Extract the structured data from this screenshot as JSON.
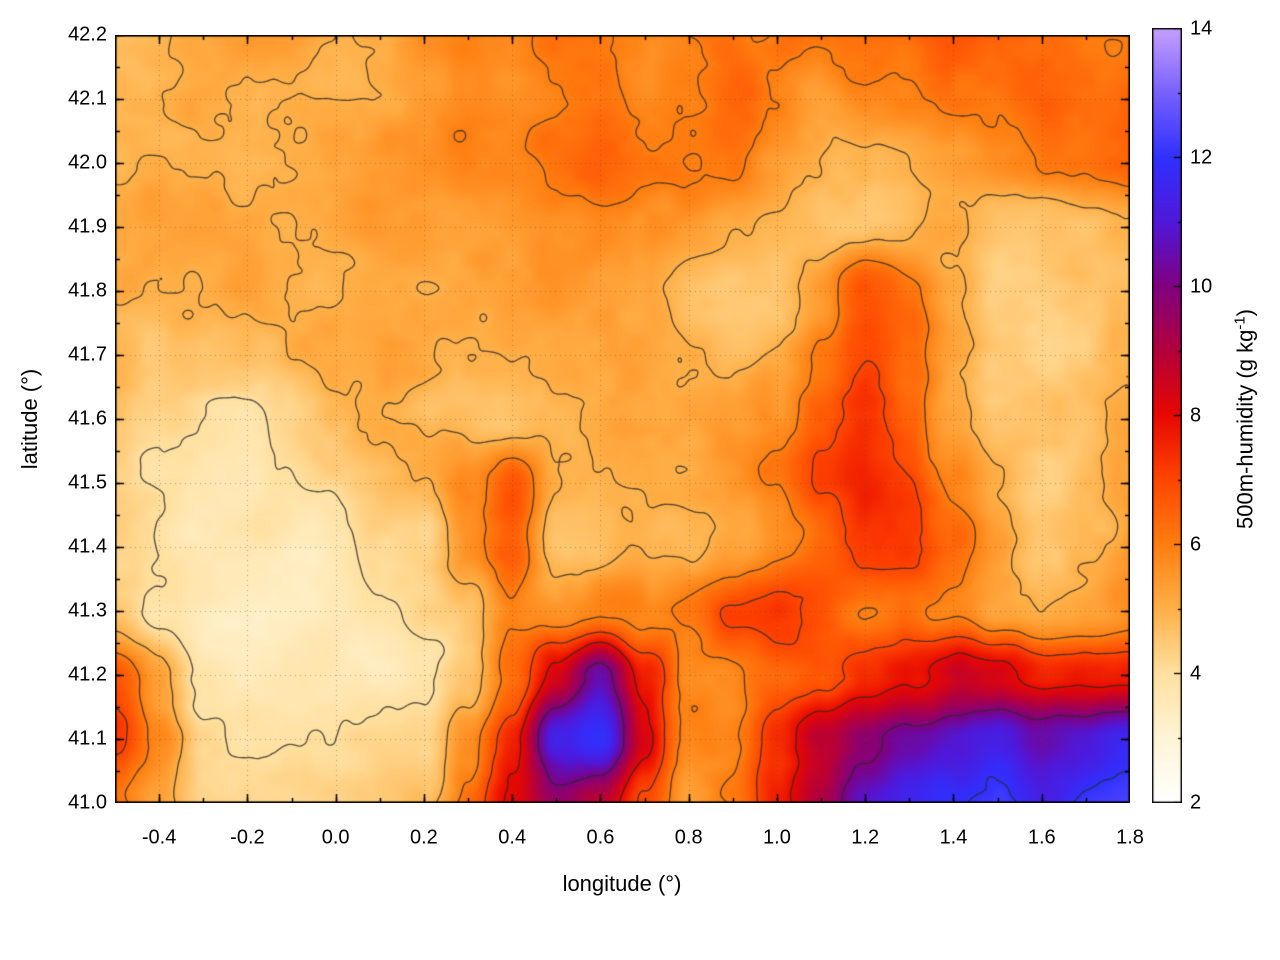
{
  "figure": {
    "background": "#ffffff"
  },
  "chart_data": {
    "type": "heatmap",
    "title": "",
    "xlabel": "longitude (°)",
    "ylabel": "latitude (°)",
    "colorbar_label_prefix": "500m-humidity (g kg",
    "colorbar_label_sup": "-1",
    "colorbar_label_suffix": ")",
    "x_range": [
      -0.5,
      1.8
    ],
    "y_range": [
      41.0,
      42.2
    ],
    "z_range": [
      2,
      14
    ],
    "x_ticks": [
      -0.4,
      -0.2,
      0.0,
      0.2,
      0.4,
      0.6,
      0.8,
      1.0,
      1.2,
      1.4,
      1.6,
      1.8
    ],
    "x_minor_step": 0.1,
    "y_ticks": [
      41.0,
      41.1,
      41.2,
      41.3,
      41.4,
      41.5,
      41.6,
      41.7,
      41.8,
      41.9,
      42.0,
      42.1,
      42.2
    ],
    "y_minor_step": 0.05,
    "colorbar_ticks": [
      2,
      4,
      6,
      8,
      10,
      12,
      14
    ],
    "colorbar_minor_step": 1,
    "grid_lines": "dotted",
    "legend_position": "colorbar-right",
    "contour_levels": [
      4,
      5,
      6,
      7,
      8,
      10,
      12
    ],
    "contour_color": "#2b2b2b",
    "palette": [
      {
        "v": 2,
        "color": "#ffffff"
      },
      {
        "v": 3,
        "color": "#fff4d6"
      },
      {
        "v": 4,
        "color": "#ffe0a0"
      },
      {
        "v": 5,
        "color": "#ffb048"
      },
      {
        "v": 6,
        "color": "#ff7e10"
      },
      {
        "v": 7,
        "color": "#ff4600"
      },
      {
        "v": 8,
        "color": "#e80800"
      },
      {
        "v": 9,
        "color": "#b4003c"
      },
      {
        "v": 10,
        "color": "#800080"
      },
      {
        "v": 11,
        "color": "#5018d8"
      },
      {
        "v": 12,
        "color": "#3030ff"
      },
      {
        "v": 13,
        "color": "#7860ff"
      },
      {
        "v": 14,
        "color": "#c4a0ff"
      }
    ],
    "grid": {
      "lon_start": -0.5,
      "lon_step": 0.1,
      "lat_start": 42.2,
      "lat_step": -0.1,
      "ncols": 24,
      "nrows": 13,
      "values": [
        [
          5.2,
          5.2,
          5.3,
          5.4,
          5.5,
          5.3,
          5.5,
          5.8,
          6.2,
          6.0,
          6.3,
          6.5,
          6.2,
          6.4,
          6.6,
          6.3,
          6.0,
          6.2,
          6.0,
          6.4,
          6.6,
          6.5,
          6.3,
          6.4
        ],
        [
          5.0,
          5.0,
          5.1,
          5.2,
          5.2,
          5.1,
          5.3,
          5.6,
          6.0,
          5.8,
          6.2,
          6.4,
          6.0,
          6.3,
          6.5,
          6.0,
          5.6,
          5.8,
          5.6,
          6.0,
          6.3,
          6.5,
          6.2,
          6.3
        ],
        [
          4.8,
          4.9,
          5.0,
          5.0,
          5.0,
          5.0,
          5.1,
          5.3,
          5.6,
          5.5,
          6.0,
          6.3,
          5.8,
          6.0,
          6.2,
          5.5,
          5.2,
          5.4,
          5.2,
          5.5,
          5.8,
          6.0,
          5.9,
          6.0
        ],
        [
          4.9,
          5.0,
          5.0,
          4.9,
          4.8,
          4.9,
          5.0,
          5.1,
          5.2,
          5.3,
          5.5,
          5.6,
          5.4,
          5.2,
          5.0,
          4.8,
          4.7,
          4.9,
          5.0,
          5.2,
          4.6,
          4.4,
          4.5,
          4.7
        ],
        [
          4.9,
          4.9,
          4.8,
          4.8,
          4.7,
          4.8,
          4.9,
          5.0,
          5.2,
          5.3,
          5.4,
          5.3,
          5.2,
          5.0,
          4.9,
          4.8,
          5.5,
          6.5,
          6.0,
          5.0,
          4.3,
          4.2,
          4.4,
          4.6
        ],
        [
          5.0,
          4.6,
          4.5,
          4.6,
          4.7,
          4.8,
          4.9,
          5.0,
          5.1,
          5.2,
          5.3,
          5.2,
          5.1,
          5.0,
          4.9,
          5.2,
          6.2,
          7.0,
          6.2,
          5.0,
          4.3,
          4.2,
          4.3,
          4.5
        ],
        [
          4.6,
          4.2,
          4.0,
          4.0,
          4.1,
          4.3,
          4.6,
          4.8,
          5.0,
          5.1,
          5.2,
          5.1,
          5.0,
          5.0,
          5.0,
          5.4,
          6.5,
          7.2,
          6.5,
          5.2,
          4.5,
          4.3,
          4.4,
          4.8
        ],
        [
          4.4,
          4.0,
          3.8,
          3.8,
          4.0,
          4.2,
          4.5,
          4.8,
          6.0,
          7.2,
          5.2,
          5.0,
          5.1,
          5.2,
          5.3,
          5.8,
          6.8,
          7.5,
          7.0,
          6.0,
          5.0,
          4.6,
          4.7,
          5.0
        ],
        [
          4.2,
          3.9,
          3.7,
          3.7,
          3.8,
          4.0,
          4.3,
          4.6,
          5.8,
          6.8,
          5.0,
          4.9,
          5.0,
          5.2,
          5.5,
          6.0,
          6.5,
          7.0,
          7.2,
          6.5,
          5.5,
          4.8,
          4.8,
          5.2
        ],
        [
          4.5,
          3.8,
          3.6,
          3.6,
          3.7,
          3.8,
          4.0,
          4.4,
          4.8,
          6.0,
          6.0,
          6.0,
          5.8,
          6.2,
          7.0,
          7.2,
          6.5,
          6.0,
          6.2,
          6.0,
          5.5,
          5.0,
          5.2,
          5.5
        ],
        [
          7.0,
          5.5,
          4.2,
          3.8,
          3.8,
          3.9,
          4.0,
          4.3,
          5.0,
          6.5,
          8.5,
          10.8,
          8.0,
          6.0,
          5.5,
          6.0,
          6.5,
          7.5,
          8.0,
          8.5,
          8.0,
          7.5,
          7.8,
          8.0
        ],
        [
          7.5,
          6.0,
          4.5,
          4.0,
          3.9,
          4.0,
          4.1,
          4.5,
          6.0,
          8.0,
          11.5,
          12.0,
          8.5,
          6.0,
          5.5,
          7.0,
          8.5,
          9.5,
          10.5,
          11.0,
          11.5,
          10.5,
          11.0,
          11.5
        ],
        [
          6.5,
          5.5,
          4.5,
          4.2,
          4.1,
          4.2,
          4.3,
          4.8,
          6.5,
          8.5,
          10.0,
          9.0,
          7.0,
          5.5,
          5.8,
          7.5,
          9.0,
          10.5,
          11.5,
          12.0,
          12.5,
          11.5,
          12.0,
          12.0
        ]
      ]
    }
  }
}
